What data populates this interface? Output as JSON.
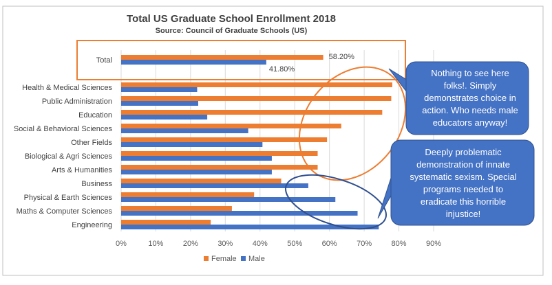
{
  "chart_data": {
    "type": "bar",
    "orientation": "horizontal",
    "title": "Total US Graduate School Enrollment 2018",
    "subtitle": "Source: Council of Graduate Schools (US)",
    "categories": [
      "Total",
      "Health & Medical Sciences",
      "Public Administration",
      "Education",
      "Social & Behavioral Sciences",
      "Other Fields",
      "Biological & Agri Sciences",
      "Arts & Humanities",
      "Business",
      "Physical & Earth Sciences",
      "Maths & Computer Sciences",
      "Engineering"
    ],
    "series": [
      {
        "name": "Female",
        "color": "#ED7D31",
        "values": [
          58.2,
          78.1,
          77.8,
          75.2,
          63.4,
          59.3,
          56.6,
          56.6,
          46.1,
          38.3,
          31.9,
          25.8
        ]
      },
      {
        "name": "Male",
        "color": "#4472C4",
        "values": [
          41.8,
          21.9,
          22.2,
          24.8,
          36.6,
          40.7,
          43.4,
          43.4,
          53.9,
          61.7,
          68.1,
          74.2
        ]
      }
    ],
    "data_labels": {
      "Female": "58.20%",
      "Male": "41.80%"
    },
    "xlim": [
      0,
      90
    ],
    "x_ticks": [
      "0%",
      "10%",
      "20%",
      "30%",
      "40%",
      "50%",
      "60%",
      "70%",
      "80%",
      "90%"
    ],
    "grid": true,
    "legend_position": "bottom"
  },
  "callouts": [
    {
      "text": "Nothing to see here folks!. Simply demonstrates choice in action. Who needs male educators anyway!",
      "color": "#4472C4"
    },
    {
      "text": "Deeply problematic demonstration of innate systematic sexism. Special programs needed to eradicate this horrible injustice!",
      "color": "#4472C4"
    }
  ]
}
